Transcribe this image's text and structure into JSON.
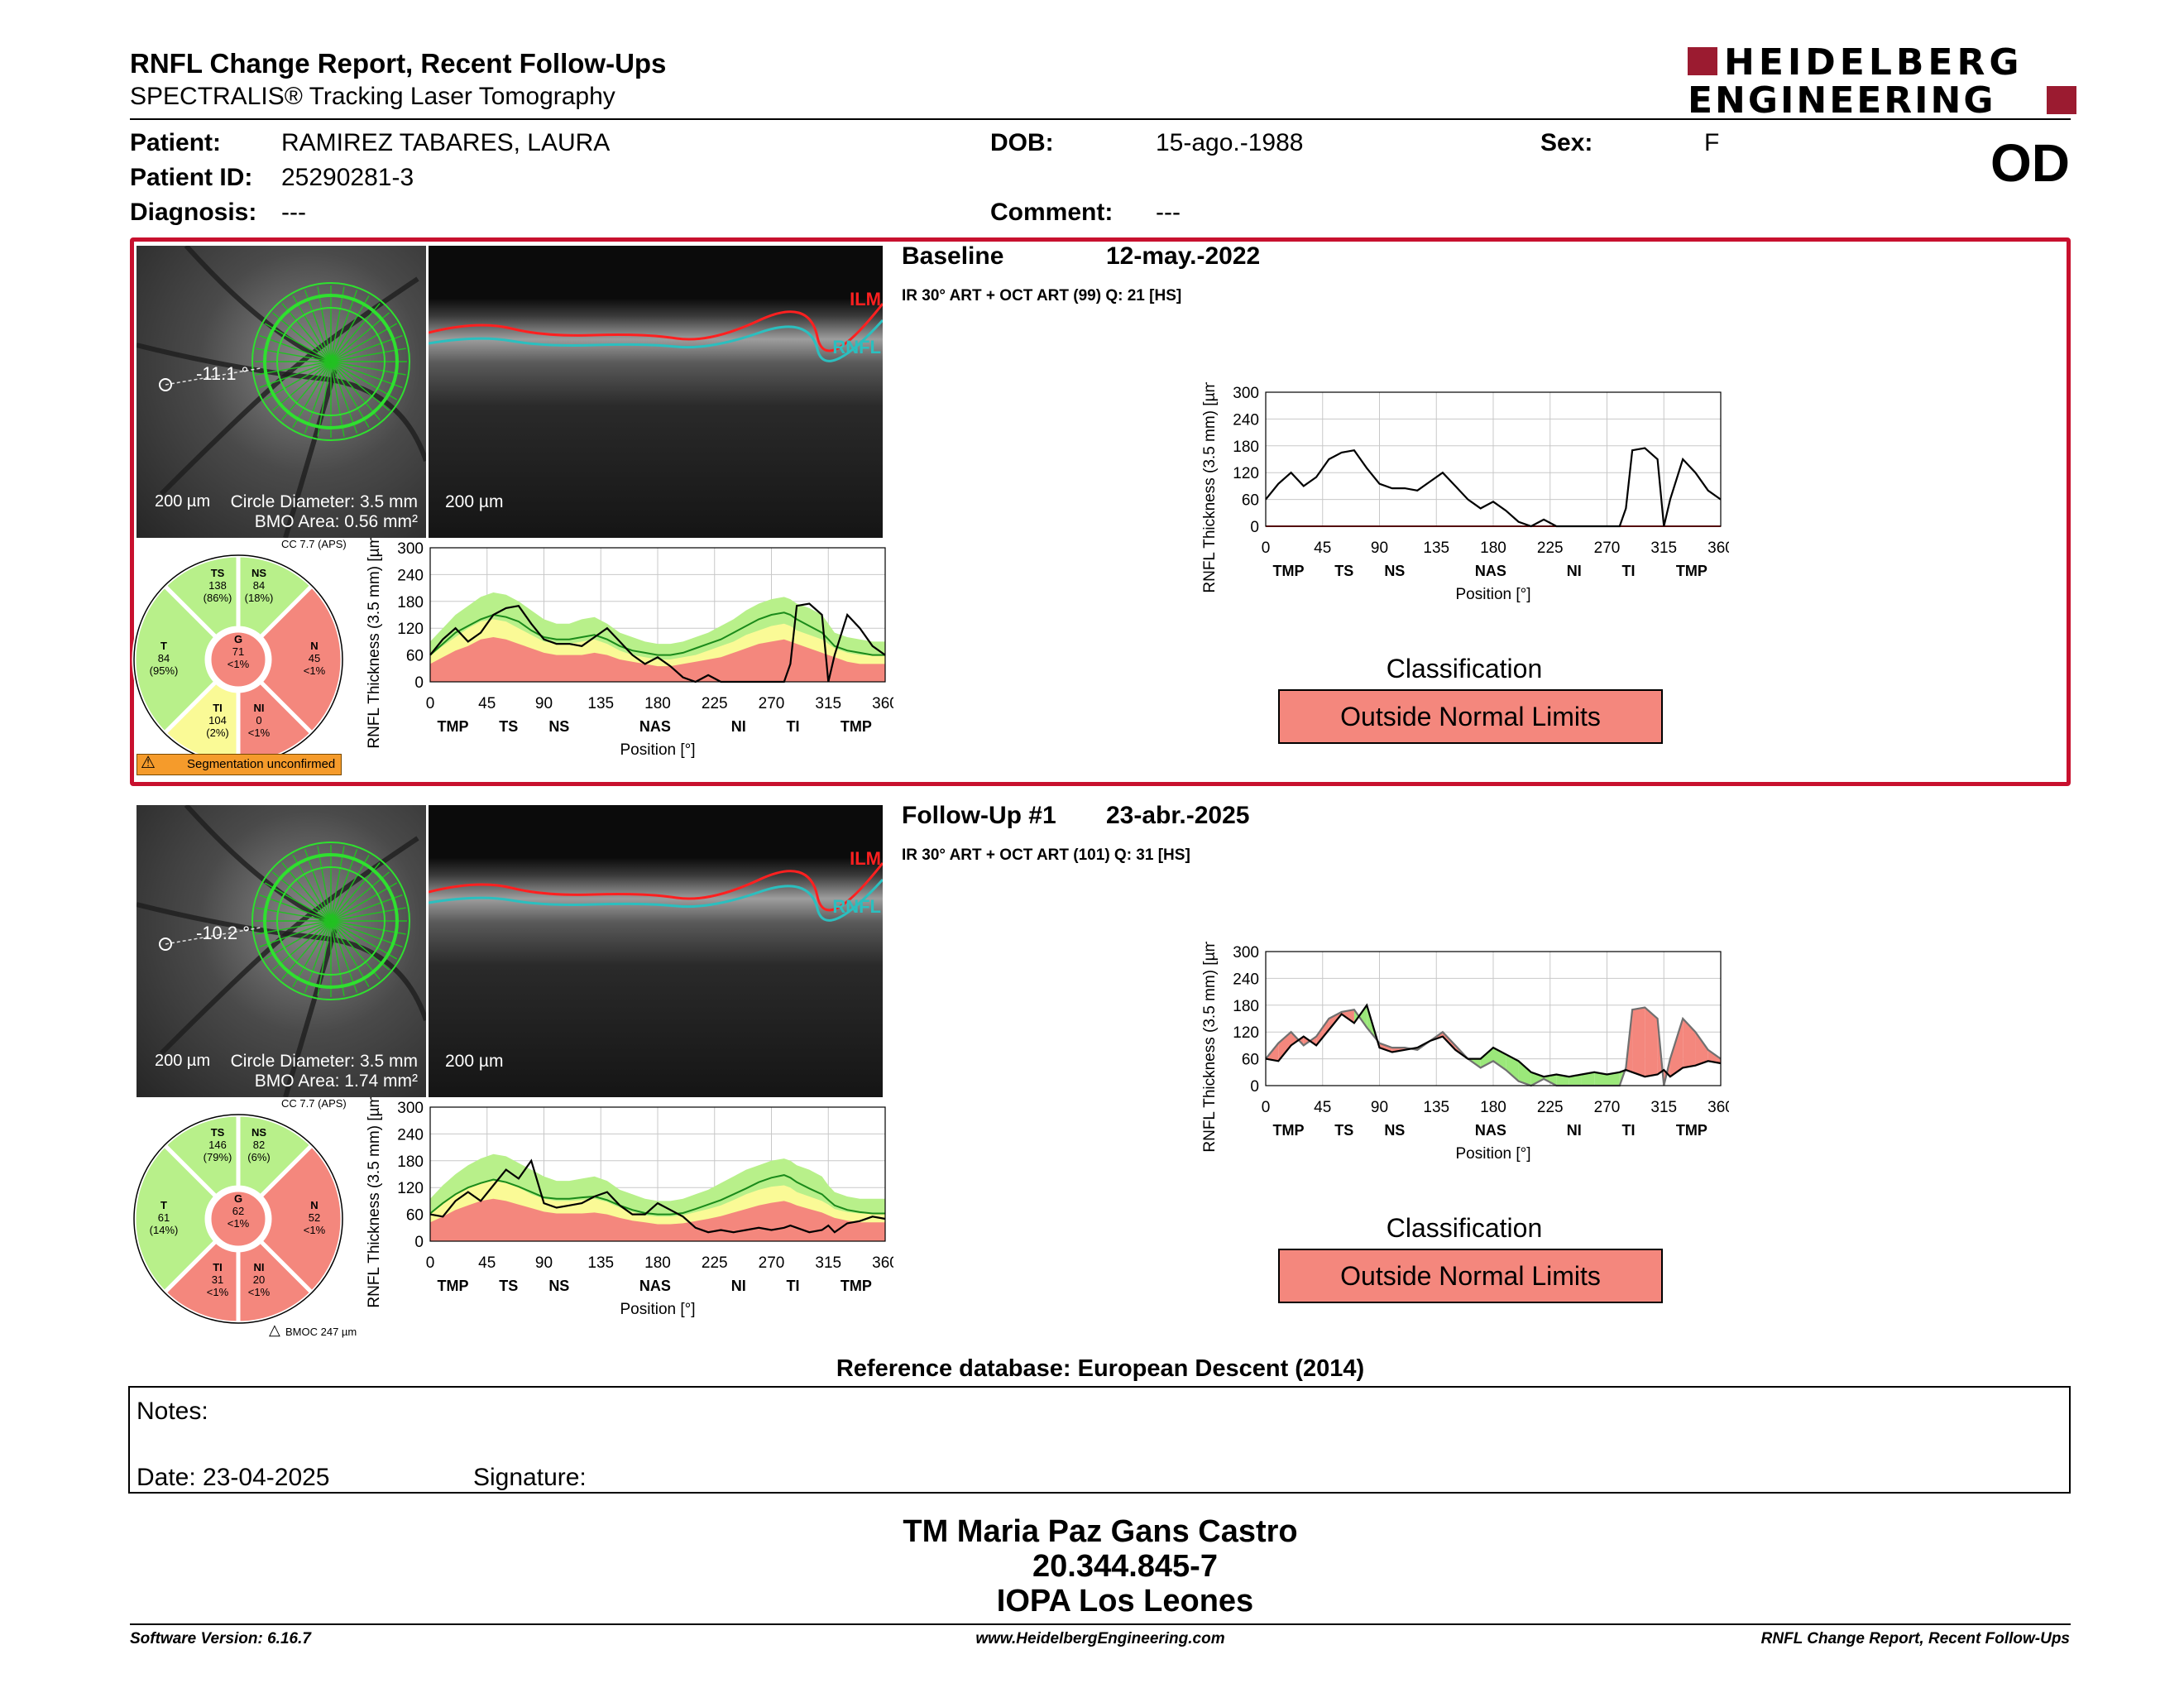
{
  "header": {
    "title": "RNFL Change Report, Recent Follow-Ups",
    "subtitle": "SPECTRALIS® Tracking Laser Tomography",
    "brand_line1": "HEIDELBERG",
    "brand_line2": "ENGINEERING",
    "eye": "OD"
  },
  "patient": {
    "patient_label": "Patient:",
    "patient_value": "RAMIREZ TABARES, LAURA",
    "id_label": "Patient ID:",
    "id_value": "25290281-3",
    "diagnosis_label": "Diagnosis:",
    "diagnosis_value": "---",
    "dob_label": "DOB:",
    "dob_value": "15-ago.-1988",
    "comment_label": "Comment:",
    "comment_value": "---",
    "sex_label": "Sex:",
    "sex_value": "F"
  },
  "exams": [
    {
      "name": "Baseline",
      "date": "12-may.-2022",
      "scan_info": "IR 30° ART + OCT ART (99) Q: 21 [HS]",
      "angle": "-11.1 °",
      "scale_fundus": "200 µm",
      "circle_diameter": "Circle Diameter: 3.5 mm",
      "bmo_area": "BMO Area: 0.56 mm²",
      "scale_bscan": "200 µm",
      "ilm_label": "ILM",
      "rnfl_label": "RNFL",
      "cc": "CC 7.7 (APS)",
      "sectors": {
        "TS": [
          "TS",
          "138",
          "(86%)"
        ],
        "NS": [
          "NS",
          "84",
          "(18%)"
        ],
        "T": [
          "T",
          "84",
          "(95%)"
        ],
        "G": [
          "G",
          "71",
          "<1%"
        ],
        "N": [
          "N",
          "45",
          "<1%"
        ],
        "TI": [
          "TI",
          "104",
          "(2%)"
        ],
        "NI": [
          "NI",
          "0",
          "<1%"
        ]
      },
      "sector_colors": {
        "TS": "#b8f08a",
        "NS": "#b8f08a",
        "T": "#b8f08a",
        "G": "#f4877d",
        "N": "#f4877d",
        "TI": "#fafa96",
        "NI": "#f4877d"
      },
      "footnote": "Segmentation unconfirmed",
      "classification_label": "Classification",
      "classification": "Outside Normal Limits"
    },
    {
      "name": "Follow-Up #1",
      "date": "23-abr.-2025",
      "scan_info": "IR 30° ART + OCT ART (101) Q: 31 [HS]",
      "angle": "-10.2 °",
      "scale_fundus": "200 µm",
      "circle_diameter": "Circle Diameter: 3.5 mm",
      "bmo_area": "BMO Area: 1.74 mm²",
      "scale_bscan": "200 µm",
      "ilm_label": "ILM",
      "rnfl_label": "RNFL",
      "cc": "CC 7.7 (APS)",
      "sectors": {
        "TS": [
          "TS",
          "146",
          "(79%)"
        ],
        "NS": [
          "NS",
          "82",
          "(6%)"
        ],
        "T": [
          "T",
          "61",
          "(14%)"
        ],
        "G": [
          "G",
          "62",
          "<1%"
        ],
        "N": [
          "N",
          "52",
          "<1%"
        ],
        "TI": [
          "TI",
          "31",
          "<1%"
        ],
        "NI": [
          "NI",
          "20",
          "<1%"
        ]
      },
      "sector_colors": {
        "TS": "#b8f08a",
        "NS": "#b8f08a",
        "T": "#b8f08a",
        "G": "#f4877d",
        "N": "#f4877d",
        "TI": "#f4877d",
        "NI": "#f4877d"
      },
      "footnote": "BMOC 247 µm",
      "classification_label": "Classification",
      "classification": "Outside Normal Limits"
    }
  ],
  "chart_data": [
    {
      "type": "line",
      "title": "",
      "xlabel": "Position [°]",
      "ylabel": "RNFL Thickness (3.5 mm) [µm]",
      "xlim": [
        0,
        360
      ],
      "ylim": [
        0,
        300
      ],
      "x_ticks": [
        0,
        45,
        90,
        135,
        180,
        225,
        270,
        315,
        360
      ],
      "y_ticks": [
        0,
        60,
        120,
        180,
        240,
        300
      ],
      "sector_ticks": [
        "TMP",
        "TS",
        "NS",
        "NAS",
        "NI",
        "TI",
        "TMP"
      ],
      "sector_positions": [
        18,
        62,
        102,
        178,
        244,
        287,
        337
      ],
      "x": [
        0,
        10,
        20,
        30,
        40,
        50,
        60,
        70,
        80,
        90,
        100,
        110,
        120,
        130,
        140,
        150,
        160,
        170,
        180,
        190,
        200,
        210,
        220,
        230,
        240,
        250,
        260,
        270,
        280,
        285,
        290,
        300,
        310,
        315,
        320,
        330,
        340,
        350,
        360
      ],
      "series": [
        {
          "values": [
            60,
            95,
            120,
            90,
            110,
            150,
            165,
            170,
            130,
            95,
            85,
            85,
            80,
            100,
            120,
            90,
            60,
            40,
            55,
            35,
            10,
            0,
            15,
            0,
            0,
            0,
            0,
            0,
            0,
            40,
            170,
            175,
            150,
            0,
            60,
            150,
            120,
            80,
            60
          ]
        }
      ],
      "normal_upper": [
        90,
        120,
        150,
        170,
        190,
        200,
        195,
        180,
        160,
        140,
        130,
        130,
        140,
        145,
        130,
        110,
        100,
        90,
        85,
        85,
        90,
        100,
        110,
        125,
        140,
        160,
        175,
        185,
        190,
        185,
        175,
        165,
        150,
        130,
        110,
        100,
        95,
        90,
        90
      ],
      "borderline_upper": [
        60,
        80,
        100,
        120,
        135,
        140,
        135,
        120,
        105,
        90,
        85,
        85,
        90,
        95,
        85,
        70,
        60,
        55,
        50,
        50,
        55,
        60,
        70,
        80,
        90,
        105,
        115,
        125,
        130,
        125,
        115,
        105,
        95,
        85,
        75,
        65,
        60,
        60,
        60
      ],
      "outside_upper": [
        40,
        55,
        70,
        80,
        95,
        100,
        95,
        85,
        75,
        65,
        60,
        60,
        60,
        65,
        60,
        50,
        45,
        40,
        35,
        35,
        40,
        45,
        50,
        55,
        65,
        75,
        85,
        90,
        95,
        90,
        85,
        75,
        65,
        60,
        55,
        45,
        40,
        40,
        40
      ],
      "mean": [
        60,
        85,
        110,
        125,
        140,
        150,
        145,
        135,
        115,
        100,
        95,
        95,
        100,
        105,
        95,
        80,
        70,
        65,
        60,
        60,
        65,
        75,
        85,
        95,
        110,
        125,
        140,
        150,
        155,
        150,
        140,
        125,
        110,
        95,
        80,
        70,
        65,
        60,
        60
      ]
    },
    {
      "type": "line",
      "title": "",
      "xlabel": "Position [°]",
      "ylabel": "RNFL Thickness (3.5 mm) [µm]",
      "xlim": [
        0,
        360
      ],
      "ylim": [
        0,
        300
      ],
      "x_ticks": [
        0,
        45,
        90,
        135,
        180,
        225,
        270,
        315,
        360
      ],
      "y_ticks": [
        0,
        60,
        120,
        180,
        240,
        300
      ],
      "sector_ticks": [
        "TMP",
        "TS",
        "NS",
        "NAS",
        "NI",
        "TI",
        "TMP"
      ],
      "sector_positions": [
        18,
        62,
        102,
        178,
        244,
        287,
        337
      ],
      "x": [
        0,
        10,
        20,
        30,
        40,
        50,
        60,
        70,
        80,
        90,
        100,
        110,
        120,
        130,
        140,
        150,
        160,
        170,
        180,
        190,
        200,
        210,
        220,
        230,
        240,
        250,
        260,
        270,
        280,
        285,
        290,
        300,
        310,
        315,
        320,
        330,
        340,
        350,
        360
      ],
      "series": [
        {
          "values": [
            60,
            55,
            90,
            110,
            90,
            125,
            160,
            140,
            180,
            85,
            75,
            80,
            85,
            100,
            110,
            80,
            60,
            60,
            85,
            70,
            55,
            30,
            20,
            25,
            20,
            25,
            30,
            25,
            30,
            35,
            30,
            20,
            25,
            35,
            20,
            40,
            45,
            55,
            50
          ]
        }
      ],
      "normal_upper": [
        95,
        125,
        150,
        170,
        185,
        195,
        190,
        175,
        160,
        145,
        135,
        135,
        140,
        145,
        135,
        115,
        105,
        95,
        90,
        90,
        95,
        105,
        115,
        130,
        145,
        160,
        170,
        180,
        185,
        180,
        170,
        160,
        145,
        125,
        110,
        100,
        95,
        95,
        95
      ],
      "borderline_upper": [
        65,
        85,
        105,
        120,
        130,
        135,
        130,
        120,
        105,
        95,
        90,
        90,
        92,
        95,
        88,
        75,
        65,
        58,
        55,
        55,
        58,
        65,
        72,
        80,
        92,
        105,
        115,
        122,
        125,
        120,
        110,
        100,
        90,
        82,
        72,
        65,
        62,
        62,
        62
      ],
      "outside_upper": [
        42,
        55,
        70,
        80,
        90,
        95,
        90,
        82,
        74,
        66,
        62,
        62,
        62,
        64,
        60,
        52,
        46,
        42,
        38,
        38,
        40,
        45,
        50,
        56,
        64,
        72,
        80,
        86,
        90,
        86,
        80,
        72,
        64,
        58,
        52,
        46,
        42,
        42,
        42
      ],
      "mean": [
        62,
        85,
        105,
        120,
        130,
        138,
        132,
        122,
        110,
        98,
        95,
        95,
        98,
        100,
        92,
        80,
        70,
        63,
        60,
        60,
        63,
        72,
        82,
        92,
        105,
        118,
        132,
        142,
        148,
        142,
        132,
        118,
        105,
        92,
        80,
        70,
        65,
        62,
        62
      ]
    },
    {
      "type": "line",
      "title": "",
      "xlabel": "Position [°]",
      "ylabel": "RNFL Thickness (3.5 mm) [µm]",
      "xlim": [
        0,
        360
      ],
      "ylim": [
        0,
        300
      ],
      "x_ticks": [
        0,
        45,
        90,
        135,
        180,
        225,
        270,
        315,
        360
      ],
      "y_ticks": [
        0,
        60,
        120,
        180,
        240,
        300
      ],
      "sector_ticks": [
        "TMP",
        "TS",
        "NS",
        "NAS",
        "NI",
        "TI",
        "TMP"
      ],
      "sector_positions": [
        18,
        62,
        102,
        178,
        244,
        287,
        337
      ],
      "x": [
        0,
        10,
        20,
        30,
        40,
        50,
        60,
        70,
        80,
        90,
        100,
        110,
        120,
        130,
        140,
        150,
        160,
        170,
        180,
        190,
        200,
        210,
        220,
        230,
        240,
        250,
        260,
        270,
        280,
        285,
        290,
        300,
        310,
        315,
        320,
        330,
        340,
        350,
        360
      ],
      "series": [
        {
          "values": [
            60,
            95,
            120,
            90,
            110,
            150,
            165,
            170,
            130,
            95,
            85,
            85,
            80,
            100,
            120,
            90,
            60,
            40,
            55,
            35,
            10,
            0,
            15,
            0,
            0,
            0,
            0,
            0,
            0,
            40,
            170,
            175,
            150,
            0,
            60,
            150,
            120,
            80,
            60
          ]
        }
      ],
      "baseline_line_value": 0
    },
    {
      "type": "line",
      "title": "",
      "xlabel": "Position [°]",
      "ylabel": "RNFL Thickness (3.5 mm) [µm]",
      "xlim": [
        0,
        360
      ],
      "ylim": [
        0,
        300
      ],
      "x_ticks": [
        0,
        45,
        90,
        135,
        180,
        225,
        270,
        315,
        360
      ],
      "y_ticks": [
        0,
        60,
        120,
        180,
        240,
        300
      ],
      "sector_ticks": [
        "TMP",
        "TS",
        "NS",
        "NAS",
        "NI",
        "TI",
        "TMP"
      ],
      "sector_positions": [
        18,
        62,
        102,
        178,
        244,
        287,
        337
      ],
      "x": [
        0,
        10,
        20,
        30,
        40,
        50,
        60,
        70,
        80,
        90,
        100,
        110,
        120,
        130,
        140,
        150,
        160,
        170,
        180,
        190,
        200,
        210,
        220,
        230,
        240,
        250,
        260,
        270,
        280,
        285,
        290,
        300,
        310,
        315,
        320,
        330,
        340,
        350,
        360
      ],
      "series": [
        {
          "values": [
            60,
            95,
            120,
            90,
            110,
            150,
            165,
            170,
            130,
            95,
            85,
            85,
            80,
            100,
            120,
            90,
            60,
            40,
            55,
            35,
            10,
            0,
            15,
            0,
            0,
            0,
            0,
            0,
            0,
            40,
            170,
            175,
            150,
            0,
            60,
            150,
            120,
            80,
            60
          ]
        },
        {
          "values": [
            60,
            55,
            90,
            110,
            90,
            125,
            160,
            140,
            180,
            85,
            75,
            80,
            85,
            100,
            110,
            80,
            60,
            60,
            85,
            70,
            55,
            30,
            20,
            25,
            20,
            25,
            30,
            25,
            30,
            35,
            30,
            20,
            25,
            35,
            20,
            40,
            45,
            55,
            50
          ]
        }
      ]
    }
  ],
  "reference_db": "Reference database: European Descent (2014)",
  "notes": {
    "label": "Notes:",
    "date_label": "Date: 23-04-2025",
    "signature_label": "Signature:"
  },
  "signature_block": {
    "line1": "TM Maria Paz Gans Castro",
    "line2": "20.344.845-7",
    "line3": "IOPA Los Leones"
  },
  "footer": {
    "left": "Software Version: 6.16.7",
    "center": "www.HeidelbergEngineering.com",
    "right": "RNFL Change Report, Recent Follow-Ups"
  },
  "colors": {
    "accent_red": "#c8102e",
    "normal_green": "#b8f08a",
    "borderline_yellow": "#fafa96",
    "outside_red": "#f4877d",
    "scan_green": "#22c022"
  }
}
